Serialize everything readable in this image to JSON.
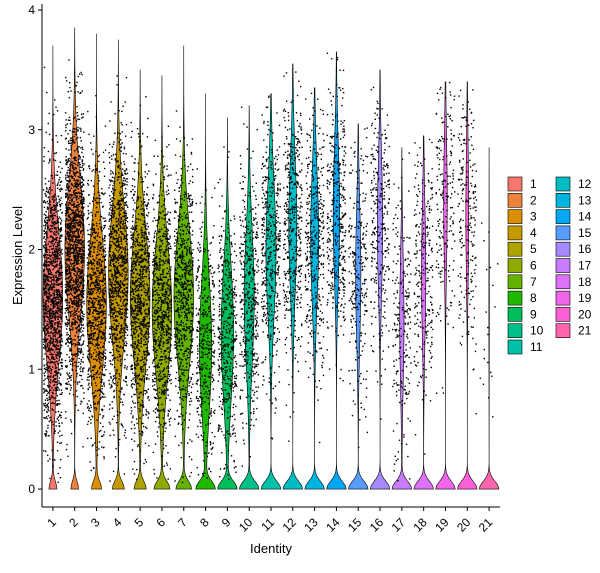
{
  "chart_data": {
    "type": "violin",
    "title": "",
    "xlabel": "Identity",
    "ylabel": "Expression Level",
    "ylim": [
      -0.15,
      4.05
    ],
    "y_ticks": [
      0,
      1,
      2,
      3,
      4
    ],
    "grid": false,
    "legend_position": "right, two columns",
    "jitter_points": true,
    "categories": [
      "1",
      "2",
      "3",
      "4",
      "5",
      "6",
      "7",
      "8",
      "9",
      "10",
      "11",
      "12",
      "13",
      "14",
      "15",
      "16",
      "17",
      "18",
      "19",
      "20",
      "21"
    ],
    "colors": [
      "#F8766D",
      "#EC823C",
      "#DB8E00",
      "#C59900",
      "#AEA200",
      "#90AB00",
      "#64B200",
      "#21B800",
      "#00BD5C",
      "#00C088",
      "#00C1AA",
      "#00BDC4",
      "#00B5DE",
      "#00A8F4",
      "#579DFF",
      "#A58AFF",
      "#C77CFF",
      "#DE71F9",
      "#F066EA",
      "#FB61D7",
      "#FF65AC"
    ],
    "series": [
      {
        "name": "1",
        "zero_fraction": 0.08,
        "median": 1.6,
        "spread": 0.55,
        "max": 3.7,
        "n_points": 1400
      },
      {
        "name": "2",
        "zero_fraction": 0.08,
        "median": 2.0,
        "spread": 0.55,
        "max": 3.85,
        "n_points": 1500
      },
      {
        "name": "3",
        "zero_fraction": 0.1,
        "median": 1.55,
        "spread": 0.55,
        "max": 3.8,
        "n_points": 900
      },
      {
        "name": "4",
        "zero_fraction": 0.12,
        "median": 1.8,
        "spread": 0.55,
        "max": 3.75,
        "n_points": 1000
      },
      {
        "name": "5",
        "zero_fraction": 0.12,
        "median": 1.6,
        "spread": 0.55,
        "max": 3.5,
        "n_points": 900
      },
      {
        "name": "6",
        "zero_fraction": 0.15,
        "median": 1.5,
        "spread": 0.55,
        "max": 3.45,
        "n_points": 800
      },
      {
        "name": "7",
        "zero_fraction": 0.15,
        "median": 1.6,
        "spread": 0.55,
        "max": 3.7,
        "n_points": 700
      },
      {
        "name": "8",
        "zero_fraction": 0.25,
        "median": 1.2,
        "spread": 0.55,
        "max": 3.3,
        "n_points": 400
      },
      {
        "name": "9",
        "zero_fraction": 0.25,
        "median": 1.3,
        "spread": 0.55,
        "max": 3.1,
        "n_points": 450
      },
      {
        "name": "10",
        "zero_fraction": 0.3,
        "median": 1.6,
        "spread": 0.55,
        "max": 3.2,
        "n_points": 450
      },
      {
        "name": "11",
        "zero_fraction": 0.3,
        "median": 2.0,
        "spread": 0.55,
        "max": 3.3,
        "n_points": 450
      },
      {
        "name": "12",
        "zero_fraction": 0.35,
        "median": 2.2,
        "spread": 0.55,
        "max": 3.55,
        "n_points": 450
      },
      {
        "name": "13",
        "zero_fraction": 0.35,
        "median": 2.1,
        "spread": 0.55,
        "max": 3.35,
        "n_points": 400
      },
      {
        "name": "14",
        "zero_fraction": 0.4,
        "median": 2.3,
        "spread": 0.55,
        "max": 3.65,
        "n_points": 400
      },
      {
        "name": "15",
        "zero_fraction": 0.45,
        "median": 1.8,
        "spread": 0.55,
        "max": 3.05,
        "n_points": 250
      },
      {
        "name": "16",
        "zero_fraction": 0.45,
        "median": 2.2,
        "spread": 0.55,
        "max": 3.5,
        "n_points": 280
      },
      {
        "name": "17",
        "zero_fraction": 0.5,
        "median": 1.4,
        "spread": 0.55,
        "max": 2.85,
        "n_points": 220
      },
      {
        "name": "18",
        "zero_fraction": 0.5,
        "median": 1.8,
        "spread": 0.55,
        "max": 2.95,
        "n_points": 250
      },
      {
        "name": "19",
        "zero_fraction": 0.55,
        "median": 2.4,
        "spread": 0.55,
        "max": 3.4,
        "n_points": 200
      },
      {
        "name": "20",
        "zero_fraction": 0.6,
        "median": 2.3,
        "spread": 0.55,
        "max": 3.4,
        "n_points": 220
      },
      {
        "name": "21",
        "zero_fraction": 0.9,
        "median": 1.5,
        "spread": 0.6,
        "max": 2.85,
        "n_points": 20
      }
    ]
  }
}
